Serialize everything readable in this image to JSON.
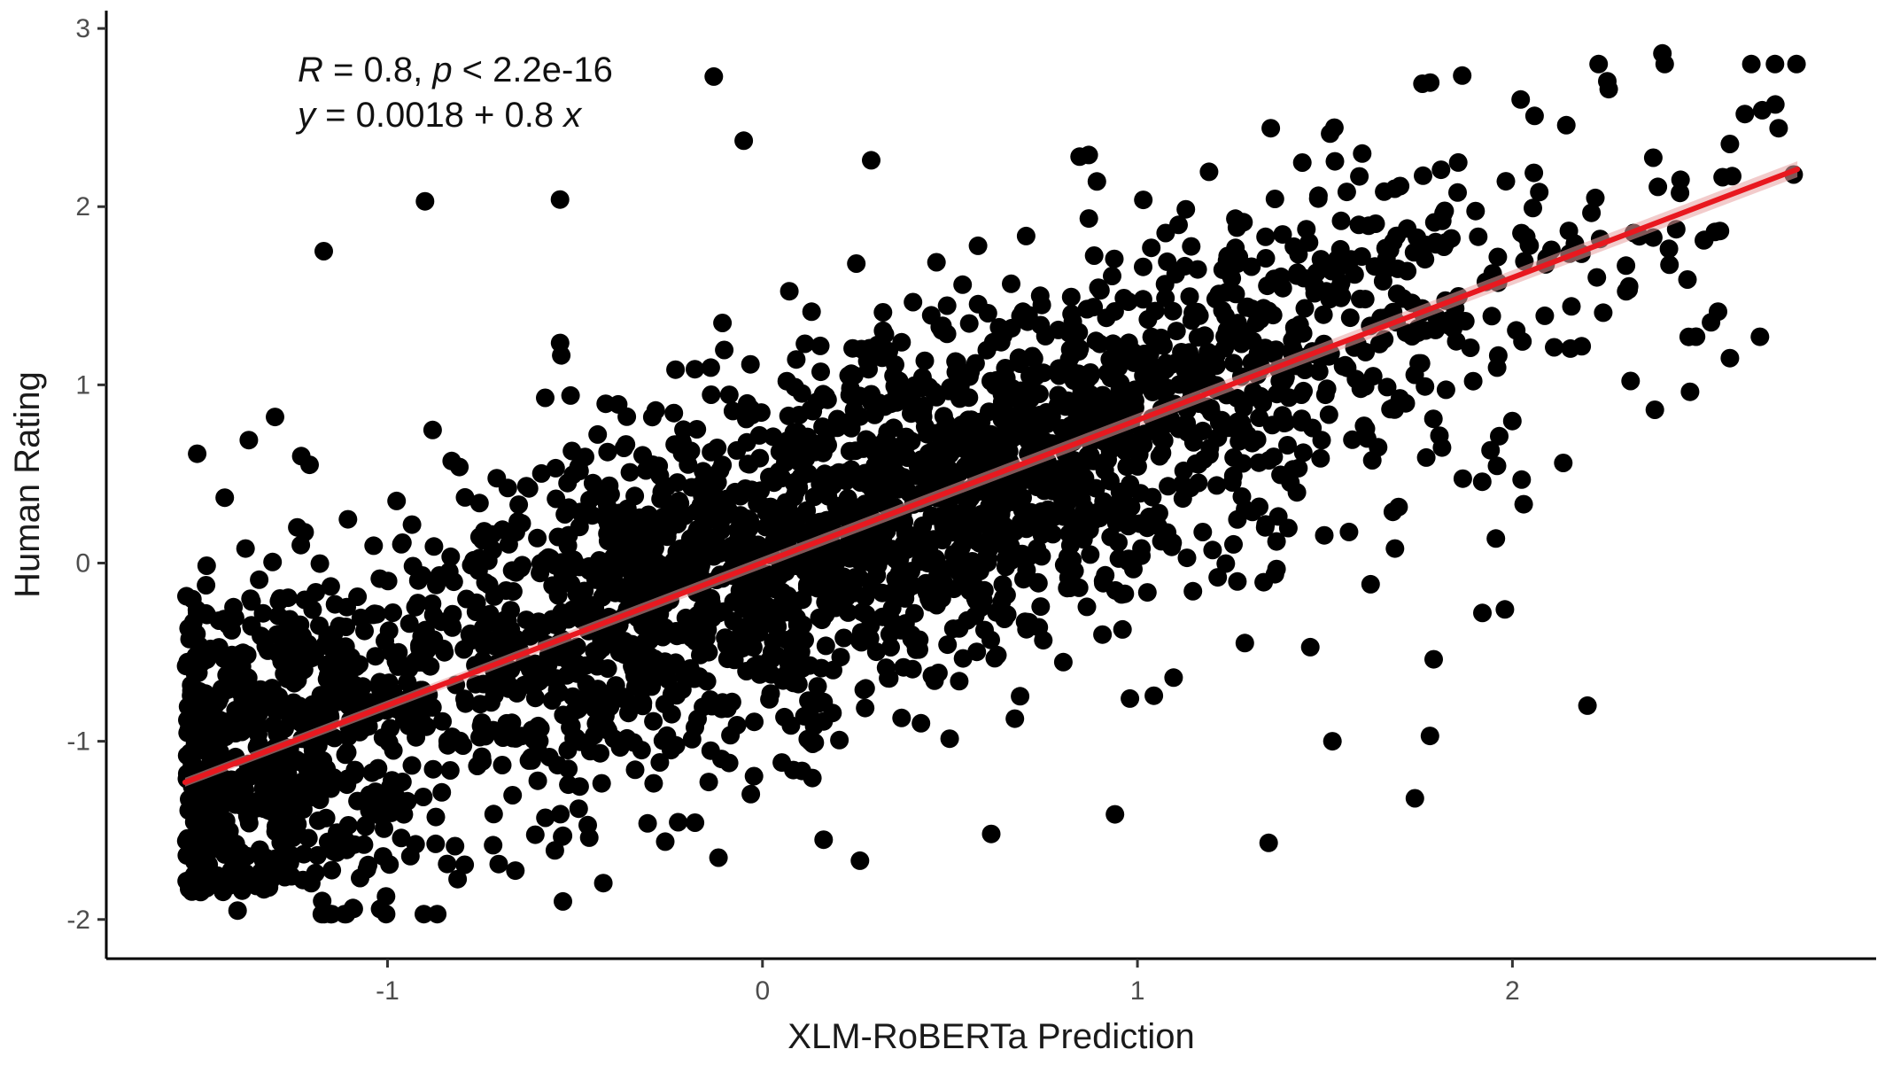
{
  "chart_data": {
    "type": "scatter",
    "title": "",
    "xlabel": "XLM-RoBERTa Prediction",
    "ylabel": "Human Rating",
    "xlim": [
      -1.75,
      2.97
    ],
    "ylim": [
      -2.22,
      3.1
    ],
    "x_ticks": [
      -1,
      0,
      1,
      2
    ],
    "y_ticks": [
      -2,
      -1,
      0,
      1,
      2,
      3
    ],
    "grid": false,
    "legend": "none",
    "annotations": {
      "stats": {
        "r_symbol": "R",
        "r_text": " = 0.8, ",
        "p_symbol": "p",
        "p_text": " < 2.2e-16"
      },
      "equation": {
        "y_symbol": "y",
        "eq_text": " = 0.0018 + 0.8 ",
        "x_symbol": "x"
      }
    },
    "regression": {
      "intercept": 0.0018,
      "slope": 0.8,
      "x_range": [
        -1.54,
        2.76
      ],
      "color": "#e8181f",
      "band_color": "#e8a0a0"
    },
    "point_color": "#000000",
    "n_points": 3000,
    "density_model": {
      "x_min": -1.54,
      "x_max": 2.76,
      "cluster_x_fraction": 0.14,
      "cluster_x_spread": 0.12,
      "x_mode": 0.3,
      "x_mode_spread": 0.9,
      "residual_sd": 0.52,
      "seed": 7
    },
    "outliers": [
      {
        "x": -0.13,
        "y": 2.73
      },
      {
        "x": 2.4,
        "y": 2.86
      },
      {
        "x": 1.76,
        "y": 2.69
      },
      {
        "x": -0.05,
        "y": 2.37
      },
      {
        "x": 0.29,
        "y": 2.26
      },
      {
        "x": 0.87,
        "y": 2.29
      },
      {
        "x": -0.9,
        "y": 2.03
      },
      {
        "x": -0.54,
        "y": 2.04
      },
      {
        "x": -1.17,
        "y": 1.75
      },
      {
        "x": -1.3,
        "y": 0.82
      },
      {
        "x": -1.23,
        "y": 0.6
      },
      {
        "x": -1.37,
        "y": 0.69
      },
      {
        "x": 1.35,
        "y": -1.57
      },
      {
        "x": 1.52,
        "y": -1.0
      },
      {
        "x": 1.74,
        "y": -1.32
      },
      {
        "x": 2.2,
        "y": -0.8
      },
      {
        "x": 1.78,
        "y": -0.97
      },
      {
        "x": 1.79,
        "y": -0.54
      },
      {
        "x": 2.03,
        "y": 0.33
      },
      {
        "x": 1.92,
        "y": -0.28
      },
      {
        "x": 1.98,
        "y": -0.26
      },
      {
        "x": 0.26,
        "y": -1.67
      },
      {
        "x": 0.61,
        "y": -1.52
      },
      {
        "x": -1.09,
        "y": -1.94
      },
      {
        "x": -1.4,
        "y": -1.95
      },
      {
        "x": 0.94,
        "y": -1.41
      },
      {
        "x": 0.98,
        "y": -0.76
      },
      {
        "x": 2.58,
        "y": 1.15
      },
      {
        "x": 2.66,
        "y": 1.27
      },
      {
        "x": 2.38,
        "y": 0.86
      },
      {
        "x": 2.75,
        "y": 2.18
      },
      {
        "x": 2.62,
        "y": 2.52
      },
      {
        "x": 2.71,
        "y": 2.44
      }
    ]
  }
}
